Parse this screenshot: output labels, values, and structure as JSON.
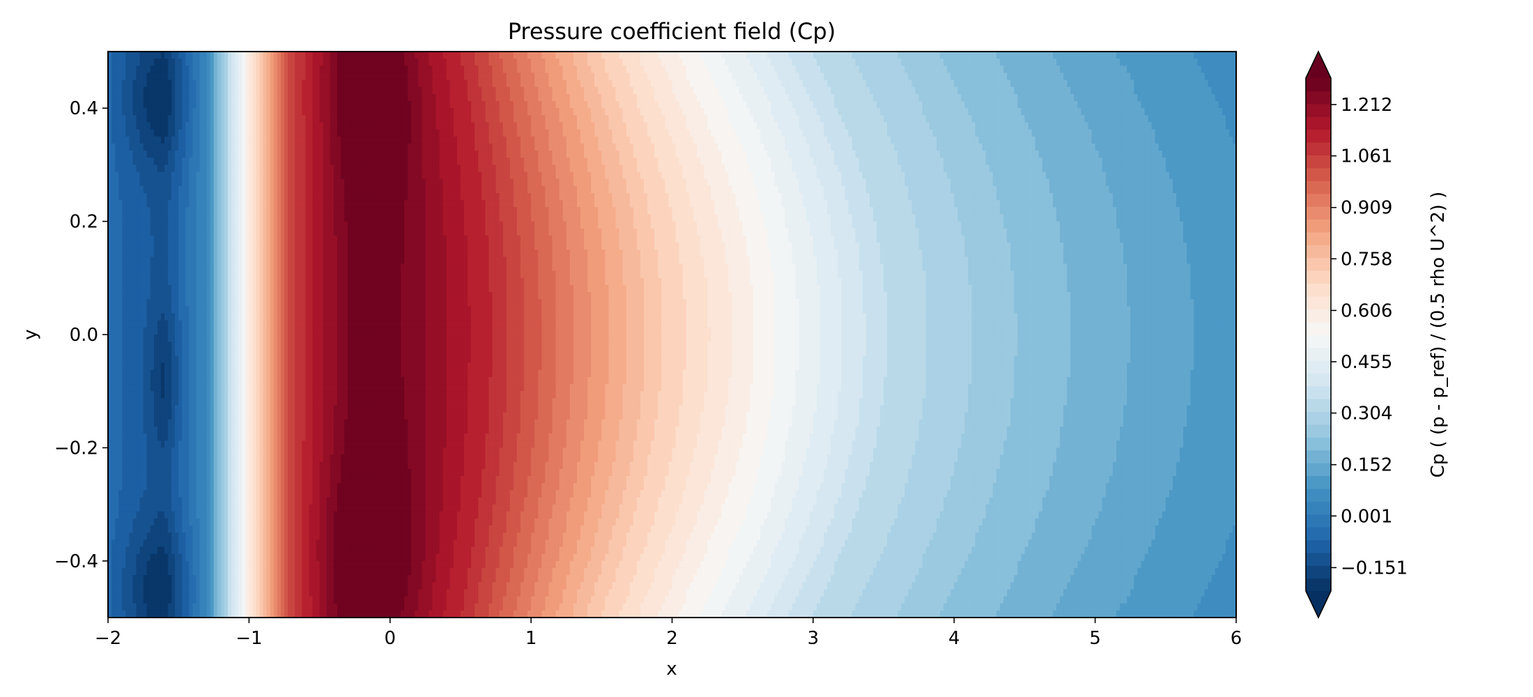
{
  "chart_data": {
    "type": "heatmap",
    "title": "Pressure coefficient field (Cp)",
    "xlabel": "x",
    "ylabel": "y",
    "xlim": [
      -2,
      6
    ],
    "ylim": [
      -0.5,
      0.5
    ],
    "x_ticks": [
      -2,
      -1,
      0,
      1,
      2,
      3,
      4,
      5,
      6
    ],
    "x_tick_labels": [
      "−2",
      "−1",
      "0",
      "1",
      "2",
      "3",
      "4",
      "5",
      "6"
    ],
    "y_ticks": [
      -0.4,
      -0.2,
      0.0,
      0.2,
      0.4
    ],
    "y_tick_labels": [
      "−0.4",
      "−0.2",
      "0.0",
      "0.2",
      "0.4"
    ],
    "colorbar": {
      "label": "Cp ( (p - p_ref) / (0.5 rho U^2) )",
      "min": -0.22,
      "max": 1.29,
      "extend": "both",
      "ticks": [
        -0.151,
        0.001,
        0.152,
        0.304,
        0.455,
        0.606,
        0.758,
        0.909,
        1.061,
        1.212
      ],
      "tick_labels": [
        "−0.151",
        "0.001",
        "0.152",
        "0.304",
        "0.455",
        "0.606",
        "0.758",
        "0.909",
        "1.061",
        "1.212"
      ],
      "colormap": "RdBu_r"
    },
    "field_profile_y0": {
      "x": [
        -2.0,
        -1.6,
        -1.3,
        -1.0,
        -0.7,
        -0.3,
        0.0,
        0.5,
        1.0,
        1.5,
        2.0,
        3.0,
        4.0,
        5.0,
        6.0
      ],
      "cp": [
        -0.05,
        -0.12,
        0.05,
        0.6,
        1.05,
        1.27,
        1.25,
        1.1,
        0.9,
        0.72,
        0.58,
        0.34,
        0.22,
        0.13,
        0.06
      ]
    }
  }
}
